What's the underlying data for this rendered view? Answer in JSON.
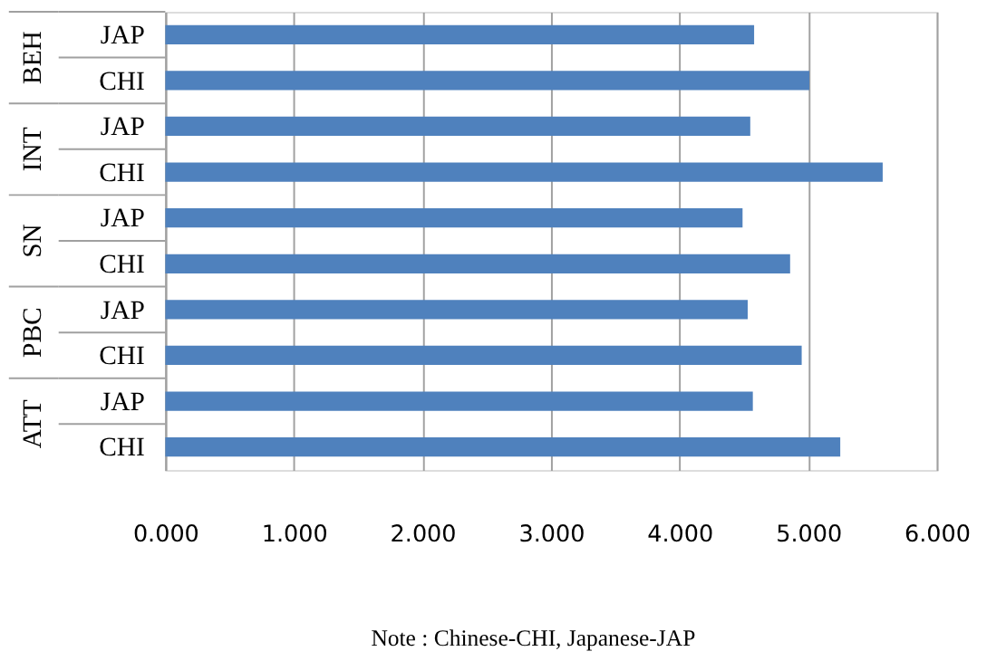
{
  "chart_data": {
    "type": "bar",
    "orientation": "horizontal",
    "categories": [
      "JAP",
      "CHI",
      "JAP",
      "CHI",
      "JAP",
      "CHI",
      "JAP",
      "CHI",
      "JAP",
      "CHI"
    ],
    "values": [
      4.58,
      5.01,
      4.55,
      5.58,
      4.49,
      4.86,
      4.53,
      4.95,
      4.57,
      5.25
    ],
    "color": "#4f81bd",
    "xlim": [
      0,
      6
    ],
    "xticks": [
      {
        "value": 0,
        "label": "0.000"
      },
      {
        "value": 1,
        "label": "1.000"
      },
      {
        "value": 2,
        "label": "2.000"
      },
      {
        "value": 3,
        "label": "3.000"
      },
      {
        "value": 4,
        "label": "4.000"
      },
      {
        "value": 5,
        "label": "5.000"
      },
      {
        "value": 6,
        "label": "6.000"
      }
    ],
    "grid": "x",
    "annotations": [
      "BEH",
      "INT",
      "SN",
      "PBC",
      "ATT",
      "Note : Chinese-CHI, Japanese-JAP"
    ]
  }
}
